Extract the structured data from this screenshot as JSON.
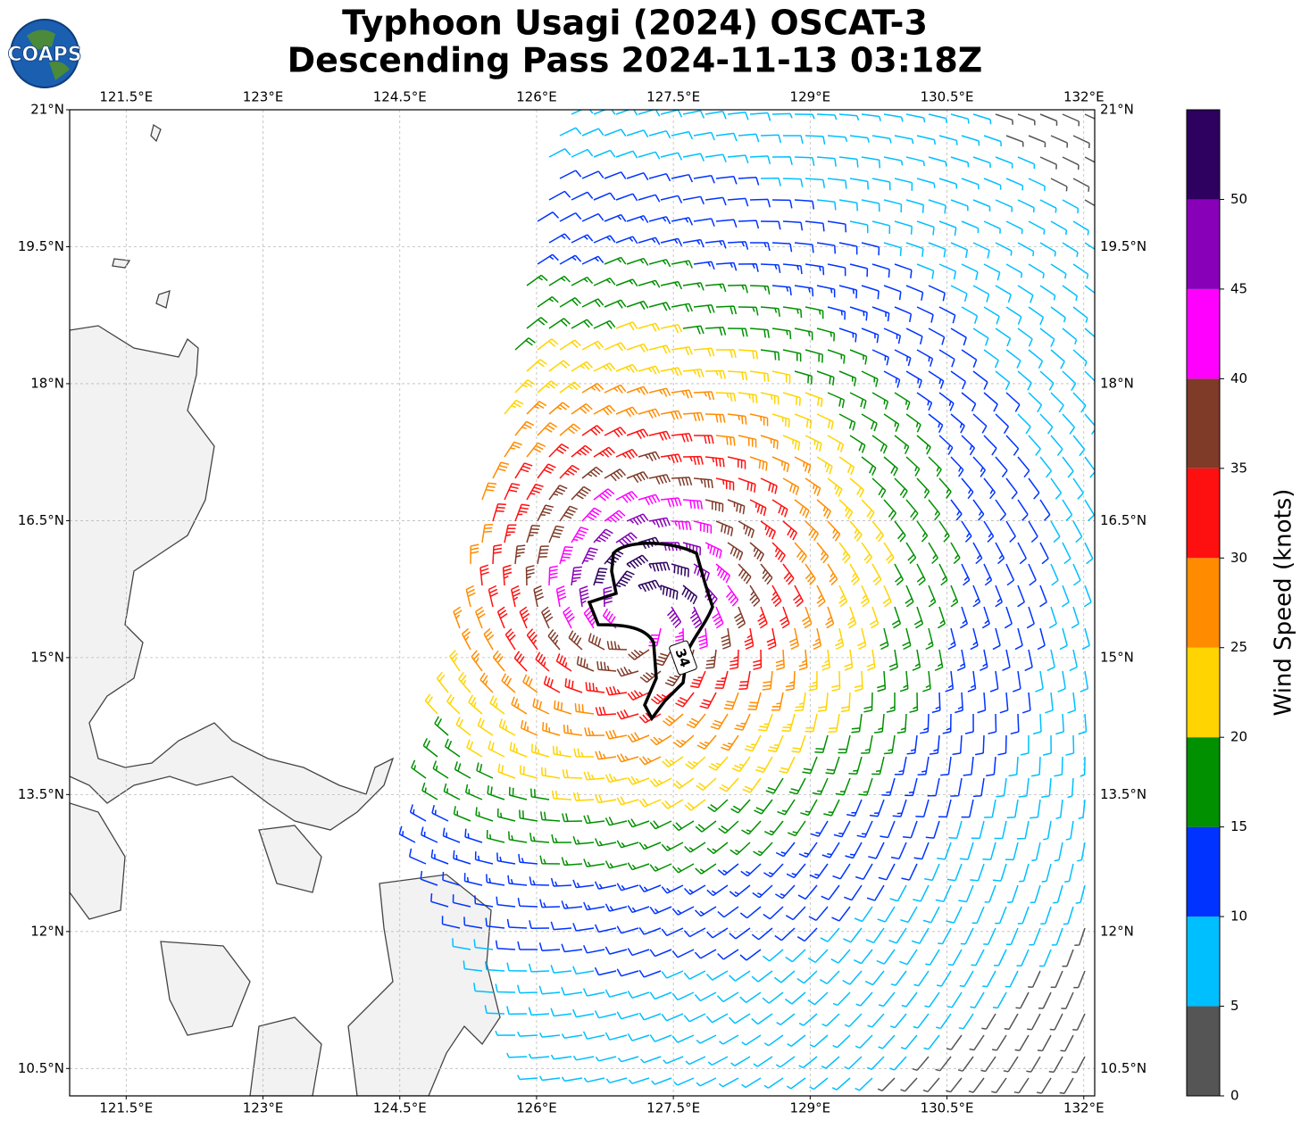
{
  "map": {
    "title": [
      "Typhoon Usagi (2024) OSCAT-3",
      "Descending Pass 2024-11-13 03:18Z"
    ],
    "logo": "COAPS",
    "contour_label": "34",
    "grid": true,
    "xlim": [
      120.88,
      132.12
    ],
    "ylim": [
      10.2,
      21
    ],
    "xticks": [
      {
        "value": 121.5,
        "label": "121.5°E"
      },
      {
        "value": 123,
        "label": "123°E"
      },
      {
        "value": 124.5,
        "label": "124.5°E"
      },
      {
        "value": 126,
        "label": "126°E"
      },
      {
        "value": 127.5,
        "label": "127.5°E"
      },
      {
        "value": 129,
        "label": "129°E"
      },
      {
        "value": 130.5,
        "label": "130.5°E"
      },
      {
        "value": 132,
        "label": "132°E"
      }
    ],
    "yticks": [
      {
        "value": 10.5,
        "label": "10.5°N"
      },
      {
        "value": 12,
        "label": "12°N"
      },
      {
        "value": 13.5,
        "label": "13.5°N"
      },
      {
        "value": 15,
        "label": "15°N"
      },
      {
        "value": 16.5,
        "label": "16.5°N"
      },
      {
        "value": 18,
        "label": "18°N"
      },
      {
        "value": 19.5,
        "label": "19.5°N"
      },
      {
        "value": 21,
        "label": "21°N"
      }
    ]
  },
  "colorbar": {
    "label": "Wind Speed (knots)",
    "bins": [
      0,
      5,
      10,
      15,
      20,
      25,
      30,
      35,
      40,
      45,
      50,
      55
    ],
    "colors": [
      "#555555",
      "#00bfff",
      "#0033ff",
      "#009000",
      "#ffd400",
      "#ff8c00",
      "#ff1010",
      "#7f3a28",
      "#ff00ff",
      "#8800b8",
      "#2e0060"
    ],
    "ticks": [
      0,
      5,
      10,
      15,
      20,
      25,
      30,
      35,
      40,
      45,
      50
    ]
  }
}
